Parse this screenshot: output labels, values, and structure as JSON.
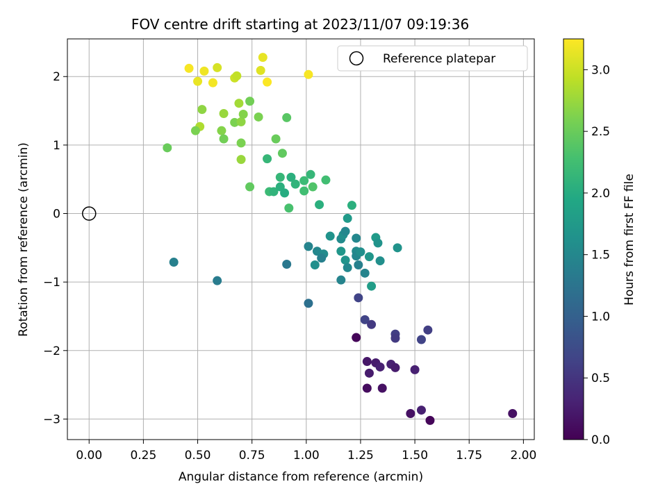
{
  "chart_data": {
    "type": "scatter",
    "title": "FOV centre drift starting at 2023/11/07 09:19:36",
    "xlabel": "Angular distance from reference (arcmin)",
    "ylabel": "Rotation from reference (arcmin)",
    "xlim": [
      -0.1,
      2.05
    ],
    "ylim": [
      -3.3,
      2.55
    ],
    "x_ticks": [
      "0.00",
      "0.25",
      "0.50",
      "0.75",
      "1.00",
      "1.25",
      "1.50",
      "1.75",
      "2.00"
    ],
    "x_tick_values": [
      0,
      0.25,
      0.5,
      0.75,
      1.0,
      1.25,
      1.5,
      1.75,
      2.0
    ],
    "y_ticks": [
      "−3",
      "−2",
      "−1",
      "0",
      "1",
      "2"
    ],
    "y_tick_values": [
      -3,
      -2,
      -1,
      0,
      1,
      2
    ],
    "grid": true,
    "legend": {
      "placement": "top-right",
      "entries": [
        "Reference platepar"
      ]
    },
    "reference_point": {
      "x": 0.0,
      "y": 0.0
    },
    "colorbar": {
      "label": "Hours from first FF file",
      "colormap": "viridis",
      "range": [
        0.0,
        3.25
      ],
      "ticks": [
        "0.0",
        "0.5",
        "1.0",
        "1.5",
        "2.0",
        "2.5",
        "3.0"
      ],
      "tick_values": [
        0.0,
        0.5,
        1.0,
        1.5,
        2.0,
        2.5,
        3.0
      ]
    },
    "points": [
      {
        "x": 0.46,
        "y": 2.12,
        "c": 3.22
      },
      {
        "x": 0.5,
        "y": 1.93,
        "c": 3.15
      },
      {
        "x": 0.53,
        "y": 2.08,
        "c": 3.18
      },
      {
        "x": 0.57,
        "y": 1.91,
        "c": 3.2
      },
      {
        "x": 0.59,
        "y": 2.13,
        "c": 3.05
      },
      {
        "x": 0.67,
        "y": 1.98,
        "c": 3.0
      },
      {
        "x": 0.68,
        "y": 2.01,
        "c": 2.95
      },
      {
        "x": 0.79,
        "y": 2.09,
        "c": 3.1
      },
      {
        "x": 0.8,
        "y": 2.28,
        "c": 3.14
      },
      {
        "x": 0.82,
        "y": 1.92,
        "c": 3.24
      },
      {
        "x": 1.01,
        "y": 2.03,
        "c": 3.22
      },
      {
        "x": 0.51,
        "y": 1.27,
        "c": 2.85
      },
      {
        "x": 0.49,
        "y": 1.21,
        "c": 2.6
      },
      {
        "x": 0.52,
        "y": 1.52,
        "c": 2.7
      },
      {
        "x": 0.62,
        "y": 1.46,
        "c": 2.75
      },
      {
        "x": 0.61,
        "y": 1.21,
        "c": 2.65
      },
      {
        "x": 0.62,
        "y": 1.09,
        "c": 2.55
      },
      {
        "x": 0.67,
        "y": 1.33,
        "c": 2.6
      },
      {
        "x": 0.69,
        "y": 1.61,
        "c": 2.8
      },
      {
        "x": 0.7,
        "y": 1.34,
        "c": 2.7
      },
      {
        "x": 0.71,
        "y": 1.45,
        "c": 2.65
      },
      {
        "x": 0.7,
        "y": 1.03,
        "c": 2.6
      },
      {
        "x": 0.7,
        "y": 0.79,
        "c": 2.75
      },
      {
        "x": 0.74,
        "y": 1.64,
        "c": 2.55
      },
      {
        "x": 0.78,
        "y": 1.41,
        "c": 2.6
      },
      {
        "x": 0.86,
        "y": 1.09,
        "c": 2.5
      },
      {
        "x": 0.89,
        "y": 0.88,
        "c": 2.45
      },
      {
        "x": 0.91,
        "y": 1.4,
        "c": 2.4
      },
      {
        "x": 0.36,
        "y": 0.96,
        "c": 2.5
      },
      {
        "x": 0.74,
        "y": 0.39,
        "c": 2.45
      },
      {
        "x": 0.82,
        "y": 0.8,
        "c": 2.15
      },
      {
        "x": 0.83,
        "y": 0.32,
        "c": 2.2
      },
      {
        "x": 0.85,
        "y": 0.32,
        "c": 2.1
      },
      {
        "x": 0.88,
        "y": 0.53,
        "c": 2.15
      },
      {
        "x": 0.88,
        "y": 0.39,
        "c": 2.05
      },
      {
        "x": 0.9,
        "y": 0.3,
        "c": 2.0
      },
      {
        "x": 0.92,
        "y": 0.08,
        "c": 2.3
      },
      {
        "x": 0.93,
        "y": 0.53,
        "c": 2.05
      },
      {
        "x": 0.95,
        "y": 0.43,
        "c": 2.1
      },
      {
        "x": 0.99,
        "y": 0.33,
        "c": 2.25
      },
      {
        "x": 0.99,
        "y": 0.48,
        "c": 2.2
      },
      {
        "x": 1.02,
        "y": 0.57,
        "c": 2.15
      },
      {
        "x": 1.03,
        "y": 0.39,
        "c": 2.35
      },
      {
        "x": 1.06,
        "y": 0.13,
        "c": 2.05
      },
      {
        "x": 1.09,
        "y": 0.49,
        "c": 2.25
      },
      {
        "x": 1.21,
        "y": 0.12,
        "c": 2.05
      },
      {
        "x": 1.19,
        "y": -0.07,
        "c": 1.75
      },
      {
        "x": 1.11,
        "y": -0.33,
        "c": 1.65
      },
      {
        "x": 1.16,
        "y": -0.37,
        "c": 1.55
      },
      {
        "x": 1.17,
        "y": -0.31,
        "c": 1.6
      },
      {
        "x": 1.18,
        "y": -0.26,
        "c": 1.5
      },
      {
        "x": 1.01,
        "y": -0.48,
        "c": 1.45
      },
      {
        "x": 1.05,
        "y": -0.55,
        "c": 1.5
      },
      {
        "x": 1.08,
        "y": -0.59,
        "c": 1.55
      },
      {
        "x": 1.07,
        "y": -0.65,
        "c": 1.4
      },
      {
        "x": 1.04,
        "y": -0.75,
        "c": 1.6
      },
      {
        "x": 1.16,
        "y": -0.55,
        "c": 1.7
      },
      {
        "x": 1.18,
        "y": -0.68,
        "c": 1.65
      },
      {
        "x": 1.19,
        "y": -0.79,
        "c": 1.5
      },
      {
        "x": 1.16,
        "y": -0.97,
        "c": 1.45
      },
      {
        "x": 1.23,
        "y": -0.36,
        "c": 1.5
      },
      {
        "x": 1.23,
        "y": -0.55,
        "c": 1.55
      },
      {
        "x": 1.23,
        "y": -0.62,
        "c": 1.5
      },
      {
        "x": 1.25,
        "y": -0.56,
        "c": 1.6
      },
      {
        "x": 1.24,
        "y": -0.75,
        "c": 1.4
      },
      {
        "x": 1.27,
        "y": -0.87,
        "c": 1.45
      },
      {
        "x": 1.29,
        "y": -0.63,
        "c": 1.7
      },
      {
        "x": 1.3,
        "y": -1.06,
        "c": 1.8
      },
      {
        "x": 1.32,
        "y": -0.35,
        "c": 1.75
      },
      {
        "x": 1.33,
        "y": -0.43,
        "c": 1.65
      },
      {
        "x": 1.34,
        "y": -0.69,
        "c": 1.6
      },
      {
        "x": 1.42,
        "y": -0.5,
        "c": 1.65
      },
      {
        "x": 0.39,
        "y": -0.71,
        "c": 1.4
      },
      {
        "x": 0.59,
        "y": -0.98,
        "c": 1.35
      },
      {
        "x": 0.91,
        "y": -0.74,
        "c": 1.3
      },
      {
        "x": 1.01,
        "y": -1.31,
        "c": 1.2
      },
      {
        "x": 1.24,
        "y": -1.23,
        "c": 0.65
      },
      {
        "x": 1.27,
        "y": -1.55,
        "c": 0.65
      },
      {
        "x": 1.3,
        "y": -1.62,
        "c": 0.55
      },
      {
        "x": 1.41,
        "y": -1.76,
        "c": 0.6
      },
      {
        "x": 1.41,
        "y": -1.82,
        "c": 0.55
      },
      {
        "x": 1.53,
        "y": -1.84,
        "c": 0.65
      },
      {
        "x": 1.56,
        "y": -1.7,
        "c": 0.6
      },
      {
        "x": 1.23,
        "y": -1.81,
        "c": 0.05
      },
      {
        "x": 1.28,
        "y": -2.16,
        "c": 0.2
      },
      {
        "x": 1.29,
        "y": -2.33,
        "c": 0.25
      },
      {
        "x": 1.28,
        "y": -2.55,
        "c": 0.1
      },
      {
        "x": 1.32,
        "y": -2.18,
        "c": 0.25
      },
      {
        "x": 1.34,
        "y": -2.24,
        "c": 0.3
      },
      {
        "x": 1.35,
        "y": -2.55,
        "c": 0.15
      },
      {
        "x": 1.39,
        "y": -2.2,
        "c": 0.3
      },
      {
        "x": 1.41,
        "y": -2.25,
        "c": 0.25
      },
      {
        "x": 1.5,
        "y": -2.28,
        "c": 0.3
      },
      {
        "x": 1.48,
        "y": -2.92,
        "c": 0.15
      },
      {
        "x": 1.53,
        "y": -2.87,
        "c": 0.3
      },
      {
        "x": 1.57,
        "y": -3.02,
        "c": 0.05
      },
      {
        "x": 1.95,
        "y": -2.92,
        "c": 0.15
      }
    ]
  }
}
